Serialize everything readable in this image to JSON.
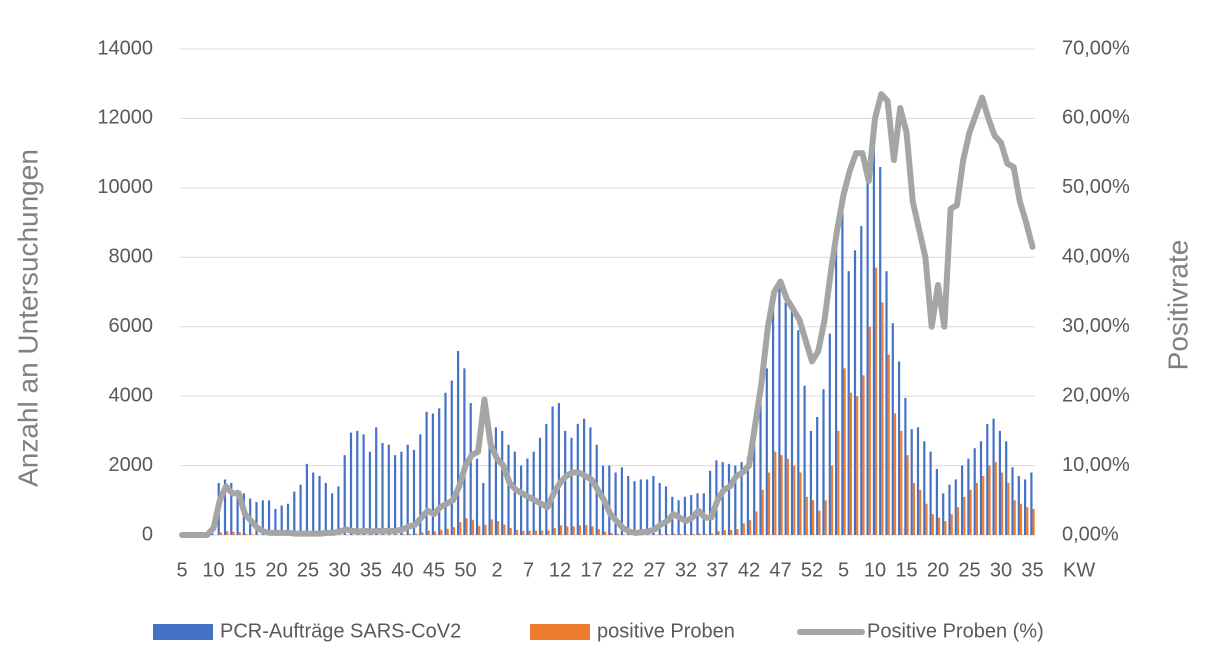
{
  "chart_data": {
    "type": "bar",
    "y_label": "Anzahl an Untersuchungen",
    "y2_label": "Positivrate",
    "x_label": "KW",
    "categories": [
      "5",
      null,
      null,
      null,
      null,
      "10",
      null,
      null,
      null,
      null,
      "15",
      null,
      null,
      null,
      null,
      "20",
      null,
      null,
      null,
      null,
      "25",
      null,
      null,
      null,
      null,
      "30",
      null,
      null,
      null,
      null,
      "35",
      null,
      null,
      null,
      null,
      "40",
      null,
      null,
      null,
      null,
      "45",
      null,
      null,
      null,
      null,
      "50",
      null,
      null,
      null,
      null,
      "2",
      null,
      null,
      null,
      null,
      "7",
      null,
      null,
      null,
      null,
      "12",
      null,
      null,
      null,
      null,
      "17",
      null,
      null,
      null,
      null,
      "22",
      null,
      null,
      null,
      null,
      "27",
      null,
      null,
      null,
      null,
      "32",
      null,
      null,
      null,
      null,
      "37",
      null,
      null,
      null,
      null,
      "42",
      null,
      null,
      null,
      null,
      "47",
      null,
      null,
      null,
      null,
      "52",
      null,
      null,
      null,
      null,
      "5",
      null,
      null,
      null,
      null,
      "10",
      null,
      null,
      null,
      null,
      "15",
      null,
      null,
      null,
      null,
      "20",
      null,
      null,
      null,
      null,
      "25",
      null,
      null,
      null,
      null,
      "30",
      null,
      null,
      null,
      null,
      "35"
    ],
    "series": [
      {
        "name": "PCR-Aufträge SARS-CoV2",
        "color": "#4472c4",
        "values": [
          0,
          0,
          0,
          0,
          0,
          50,
          1500,
          1600,
          1500,
          1300,
          1200,
          1050,
          950,
          1000,
          1000,
          750,
          850,
          900,
          1250,
          1450,
          2050,
          1800,
          1700,
          1500,
          1200,
          1400,
          2300,
          2950,
          3000,
          2900,
          2400,
          3100,
          2650,
          2600,
          2300,
          2400,
          2600,
          2450,
          2900,
          3550,
          3500,
          3650,
          4100,
          4450,
          5300,
          4800,
          3800,
          2200,
          1500,
          3200,
          3100,
          3000,
          2600,
          2400,
          2000,
          2200,
          2400,
          2800,
          3200,
          3700,
          3800,
          3000,
          2800,
          3200,
          3350,
          3100,
          2600,
          2000,
          2000,
          1800,
          1950,
          1700,
          1550,
          1600,
          1600,
          1700,
          1500,
          1400,
          1100,
          1000,
          1100,
          1150,
          1200,
          1200,
          1850,
          2150,
          2100,
          2050,
          2000,
          2100,
          2250,
          2600,
          3800,
          4800,
          6600,
          7100,
          6700,
          6600,
          5900,
          4300,
          3000,
          3400,
          4200,
          5800,
          8600,
          9400,
          7600,
          8200,
          8900,
          10400,
          11800,
          10600,
          7600,
          6100,
          5000,
          3950,
          3050,
          3100,
          2700,
          2400,
          1900,
          1200,
          1450,
          1600,
          2000,
          2200,
          2500,
          2700,
          3200,
          3350,
          3000,
          2700,
          1950,
          1700,
          1600,
          1800
        ]
      },
      {
        "name": "positive Proben",
        "color": "#ed7d31",
        "values": [
          0,
          0,
          0,
          0,
          0,
          1,
          75,
          110,
          90,
          80,
          36,
          21,
          10,
          5,
          3,
          2,
          3,
          3,
          3,
          3,
          4,
          4,
          3,
          5,
          4,
          7,
          18,
          18,
          15,
          17,
          12,
          19,
          16,
          16,
          14,
          19,
          31,
          37,
          73,
          124,
          105,
          146,
          185,
          223,
          371,
          480,
          437,
          264,
          293,
          450,
          400,
          300,
          200,
          150,
          120,
          120,
          130,
          130,
          130,
          200,
          280,
          250,
          250,
          280,
          290,
          250,
          170,
          100,
          60,
          40,
          20,
          10,
          5,
          6,
          8,
          14,
          22,
          28,
          33,
          25,
          22,
          29,
          42,
          30,
          46,
          108,
          137,
          144,
          170,
          336,
          430,
          680,
          1300,
          1800,
          2400,
          2300,
          2200,
          2000,
          1800,
          1100,
          1000,
          700,
          1000,
          2000,
          3000,
          4800,
          4100,
          4000,
          4600,
          6000,
          7700,
          6700,
          5200,
          3500,
          3000,
          2300,
          1500,
          1300,
          900,
          600,
          500,
          400,
          600,
          800,
          1100,
          1300,
          1500,
          1700,
          2000,
          2100,
          1800,
          1500,
          1000,
          900,
          800,
          750
        ]
      },
      {
        "name": "Positive Proben (%)",
        "color": "#a5a5a5",
        "type": "line",
        "axis": "y2",
        "values": [
          0,
          0,
          0,
          0,
          0,
          1,
          5,
          7,
          6,
          6,
          3,
          2,
          1,
          0.5,
          0.3,
          0.3,
          0.3,
          0.3,
          0.2,
          0.2,
          0.2,
          0.2,
          0.2,
          0.3,
          0.3,
          0.5,
          0.8,
          0.6,
          0.5,
          0.6,
          0.5,
          0.6,
          0.6,
          0.6,
          0.6,
          0.8,
          1.2,
          1.5,
          2.5,
          3.5,
          3,
          4,
          4.5,
          5,
          7,
          10,
          11.5,
          12,
          19.5,
          13,
          11,
          10,
          7.5,
          6.5,
          6,
          5.5,
          5,
          4.5,
          4,
          6,
          7.5,
          8.5,
          9,
          9,
          8.5,
          8,
          6.5,
          5,
          3,
          2,
          1,
          0.5,
          0.3,
          0.4,
          0.5,
          0.8,
          1.5,
          2,
          3,
          2.5,
          2,
          2.5,
          3.5,
          2.5,
          2.5,
          5,
          6.5,
          7,
          8.5,
          9,
          10,
          16,
          22,
          30,
          35,
          36.5,
          34,
          32.5,
          31,
          28,
          25,
          26.5,
          31,
          38,
          44,
          49,
          52.5,
          55,
          55,
          51,
          60,
          63.5,
          62.5,
          54,
          61.5,
          58,
          48,
          44,
          40,
          30,
          36,
          30,
          47,
          47.5,
          54,
          58,
          60.5,
          63,
          60,
          57.5,
          56.5,
          53.5,
          53,
          48,
          45,
          41.5
        ]
      }
    ],
    "ylim": [
      0,
      14000
    ],
    "yticks": [
      0,
      2000,
      4000,
      6000,
      8000,
      10000,
      12000,
      14000
    ],
    "y2lim": [
      0,
      70
    ],
    "y2ticks": [
      {
        "value": 0,
        "label": "0,00%"
      },
      {
        "value": 10,
        "label": "10,00%"
      },
      {
        "value": 20,
        "label": "20,00%"
      },
      {
        "value": 30,
        "label": "30,00%"
      },
      {
        "value": 40,
        "label": "40,00%"
      },
      {
        "value": 50,
        "label": "50,00%"
      },
      {
        "value": 60,
        "label": "60,00%"
      },
      {
        "value": 70,
        "label": "70,00%"
      }
    ],
    "grid": true,
    "legend": "bottom"
  }
}
